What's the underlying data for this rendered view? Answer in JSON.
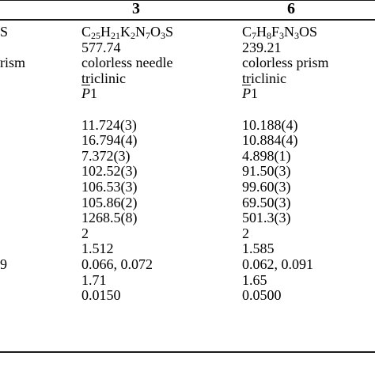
{
  "headers": {
    "compound_3": "3",
    "compound_6": "6"
  },
  "left_fragments": [
    "S",
    "rism",
    "",
    "",
    "",
    "",
    "",
    "",
    "",
    "",
    "",
    "",
    "",
    "",
    "",
    "9",
    "",
    ""
  ],
  "compound_3": {
    "formula": {
      "parts": [
        "C",
        "25",
        "H",
        "21",
        "K",
        "2",
        "N",
        "7",
        "O",
        "3",
        "S"
      ]
    },
    "formula_weight": "577.74",
    "crystal_habit": "colorless needle",
    "crystal_system": "triclinic",
    "space_group": {
      "symbol": "P",
      "number": "1"
    },
    "a": "11.724(3)",
    "b": "16.794(4)",
    "c": "7.372(3)",
    "alpha": "102.52(3)",
    "beta": "106.53(3)",
    "gamma": "105.86(2)",
    "volume": "1268.5(8)",
    "z": "2",
    "density": "1.512",
    "r_factors": "0.066, 0.072",
    "gof": "1.71",
    "max_shift": "0.0150"
  },
  "compound_6": {
    "formula": {
      "parts": [
        "C",
        "7",
        "H",
        "8",
        "F",
        "3",
        "N",
        "3",
        "OS",
        ""
      ]
    },
    "formula_weight": "239.21",
    "crystal_habit": "colorless prism",
    "crystal_system": "triclinic",
    "space_group": {
      "symbol": "P",
      "number": "1"
    },
    "a": "10.188(4)",
    "b": "10.884(4)",
    "c": "4.898(1)",
    "alpha": "91.50(3)",
    "beta": "99.60(3)",
    "gamma": "69.50(3)",
    "volume": "501.3(3)",
    "z": "2",
    "density": "1.585",
    "r_factors": "0.062, 0.091",
    "gof": "1.65",
    "max_shift": "0.0500"
  }
}
